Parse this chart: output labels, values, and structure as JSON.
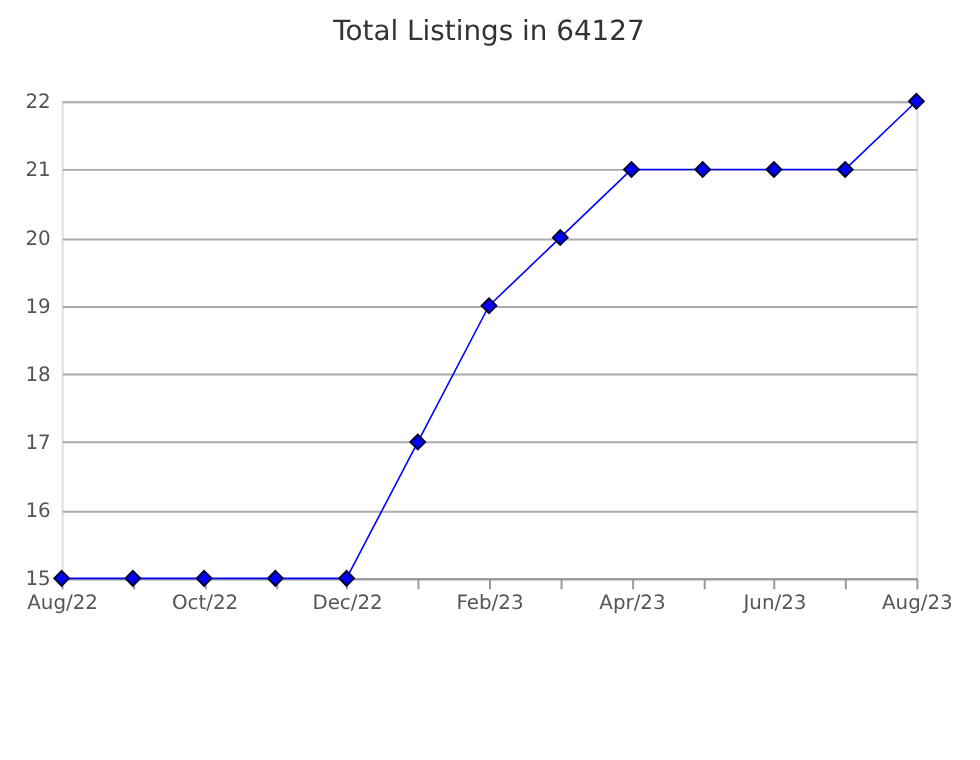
{
  "chart_data": {
    "type": "line",
    "title": "Total Listings in 64127",
    "categories": [
      "Aug/22",
      null,
      "Oct/22",
      null,
      "Dec/22",
      null,
      "Feb/23",
      null,
      "Apr/23",
      null,
      "Jun/23",
      null,
      "Aug/23"
    ],
    "series": [
      {
        "color": "#0000ff",
        "values": [
          15,
          15,
          15,
          15,
          15,
          17,
          19,
          20,
          21,
          21,
          21,
          21,
          22
        ]
      }
    ],
    "ylim": [
      15,
      22
    ],
    "yticks": [
      15,
      16,
      17,
      18,
      19,
      20,
      21,
      22
    ],
    "grid": "y",
    "marker": "diamond",
    "line_style": "solid"
  }
}
